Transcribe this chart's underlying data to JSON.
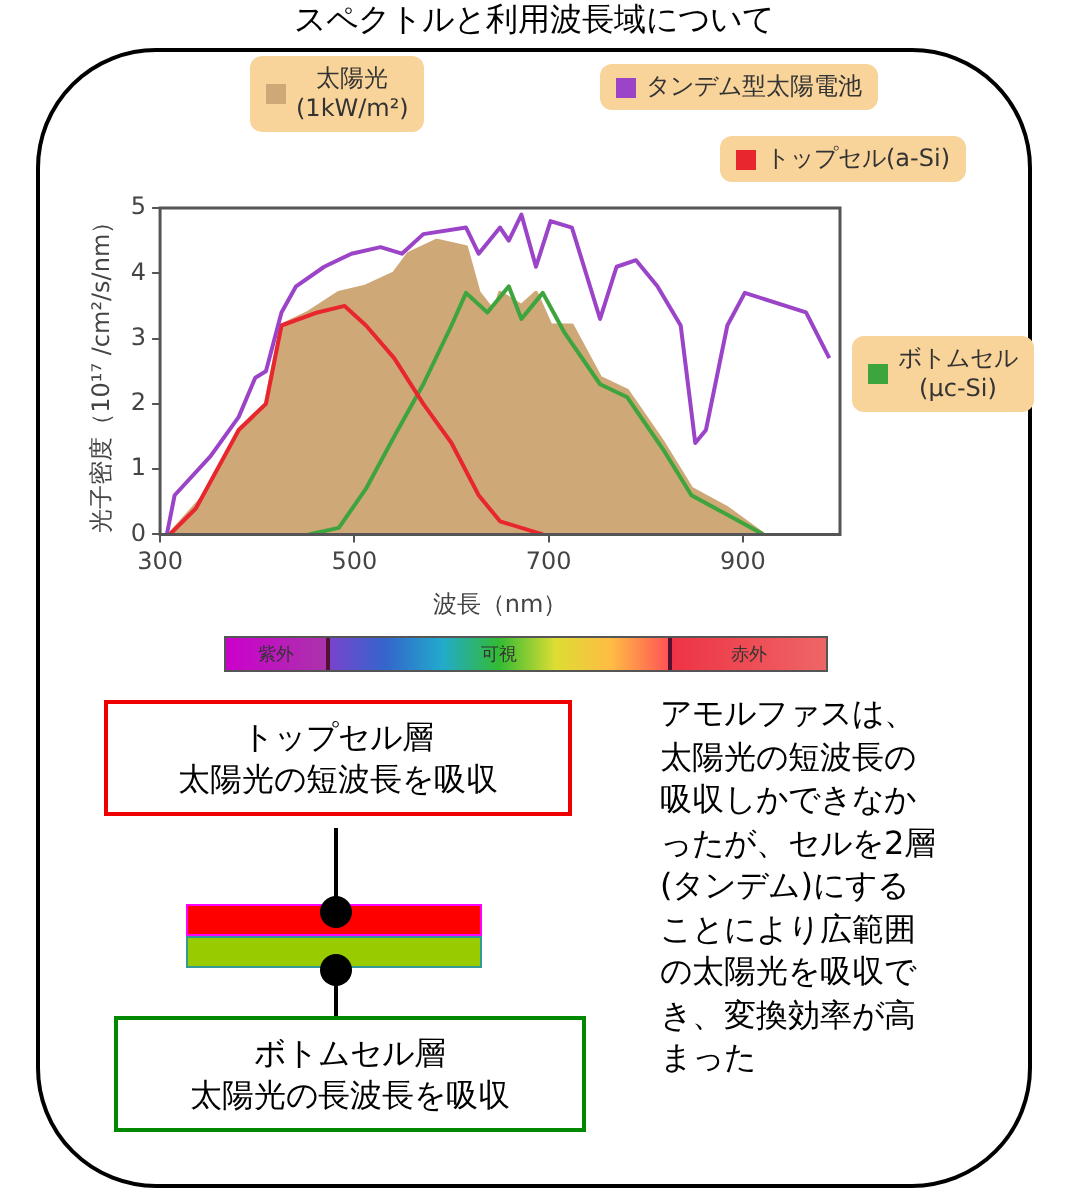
{
  "chart_data": {
    "type": "line",
    "title": "スペクトルと利用波長域について",
    "xlabel": "波長（nm）",
    "ylabel": "光子密度（10¹⁷ /cm²/s/nm）",
    "xlim": [
      300,
      1000
    ],
    "xticks": [
      300,
      500,
      700,
      900
    ],
    "ylim": [
      0,
      5
    ],
    "yticks": [
      0,
      1,
      2,
      3,
      4,
      5
    ],
    "marker": "none",
    "legend": "top right",
    "series": [
      {
        "name": "太陽光\n(1kW/m²)",
        "type": "area",
        "color": "#cfa878",
        "x": [
          310,
          352,
          381,
          409,
          425,
          453,
          484,
          512,
          541,
          556,
          585,
          615,
          628,
          644,
          650,
          672,
          687,
          702,
          724,
          753,
          781,
          818,
          847,
          884,
          921
        ],
        "values": [
          0,
          0.7,
          1.6,
          2.0,
          3.2,
          3.4,
          3.7,
          3.8,
          4.0,
          4.3,
          4.5,
          4.4,
          3.7,
          3.4,
          3.7,
          3.5,
          3.7,
          3.2,
          3.2,
          2.4,
          2.2,
          1.4,
          0.7,
          0.4,
          0
        ]
      },
      {
        "name": "タンデム型太陽電池",
        "type": "line",
        "color": "#9b44c8",
        "x": [
          307,
          315,
          352,
          381,
          398,
          409,
          425,
          440,
          469,
          497,
          527,
          549,
          571,
          615,
          628,
          650,
          659,
          672,
          687,
          702,
          724,
          753,
          770,
          790,
          812,
          836,
          851,
          862,
          884,
          902,
          965,
          989
        ],
        "values": [
          0,
          0.6,
          1.2,
          1.8,
          2.4,
          2.5,
          3.4,
          3.8,
          4.1,
          4.3,
          4.4,
          4.3,
          4.6,
          4.7,
          4.3,
          4.7,
          4.5,
          4.9,
          4.1,
          4.8,
          4.7,
          3.3,
          4.1,
          4.2,
          3.8,
          3.2,
          1.4,
          1.6,
          3.2,
          3.7,
          3.4,
          2.7
        ]
      },
      {
        "name": "トップセル(a-Si)",
        "type": "line",
        "color": "#e8262e",
        "x": [
          310,
          337,
          381,
          409,
          425,
          462,
          490,
          512,
          541,
          571,
          600,
          628,
          650,
          694
        ],
        "values": [
          0,
          0.4,
          1.6,
          2.0,
          3.2,
          3.4,
          3.5,
          3.2,
          2.7,
          2.0,
          1.4,
          0.6,
          0.2,
          0
        ]
      },
      {
        "name": "ボトムセル\n(μc-Si)",
        "type": "line",
        "color": "#3ea43e",
        "x": [
          453,
          484,
          512,
          541,
          571,
          600,
          615,
          637,
          659,
          672,
          694,
          716,
          753,
          781,
          818,
          847,
          884,
          921
        ],
        "values": [
          0,
          0.1,
          0.7,
          1.5,
          2.3,
          3.2,
          3.7,
          3.4,
          3.8,
          3.3,
          3.7,
          3.1,
          2.3,
          2.1,
          1.3,
          0.6,
          0.3,
          0
        ]
      }
    ],
    "annotations": [
      "紫外",
      "可視",
      "赤外",
      "トップセル層",
      "太陽光の短波長を吸収",
      "ボトムセル層",
      "太陽光の長波長を吸収",
      "アモルファスは、太陽光の短波長の吸収しかできなかったが、セルを2層(タンデム)にすることにより広範囲の太陽光を吸収でき、変換効率が高まった"
    ]
  }
}
